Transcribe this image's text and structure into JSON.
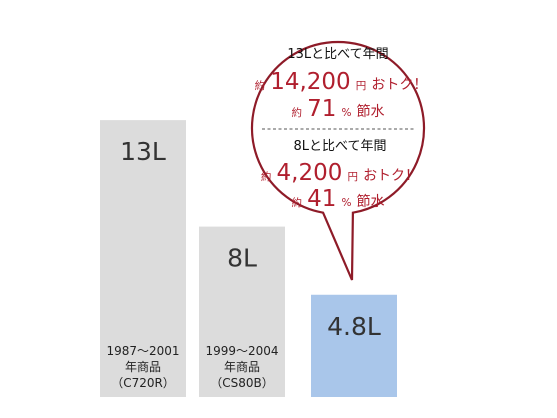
{
  "chart_data": {
    "type": "bar",
    "categories": [
      "1987〜2001 年商品 （C720R）",
      "1999〜2004 年商品 （CS80B）",
      ""
    ],
    "values": [
      13,
      8,
      4.8
    ],
    "value_labels": [
      "13L",
      "8L",
      "4.8L"
    ],
    "captions": [
      [
        "1987〜2001",
        "年商品",
        "（C720R）"
      ],
      [
        "1999〜2004",
        "年商品",
        "（CS80B）"
      ],
      []
    ],
    "ylim": [
      0,
      15
    ]
  },
  "colors": {
    "old_bar": "#dcdcdc",
    "new_bar": "#a9c6ea",
    "accent": "#b01f2e",
    "bubble_border": "#8e1b28"
  },
  "callout": {
    "compare13": {
      "heading": "13Lと比べて年間",
      "approx": "約",
      "amount": "14,200",
      "yen": "円",
      "otoku": "おトク！",
      "approx2": "約",
      "percent": "71",
      "pct_sign": "%",
      "saving": "節水"
    },
    "compare8": {
      "heading": "8Lと比べて年間",
      "approx": "約",
      "amount": "4,200",
      "yen": "円",
      "otoku": "おトク！",
      "approx2": "約",
      "percent": "41",
      "pct_sign": "%",
      "saving": "節水"
    }
  }
}
